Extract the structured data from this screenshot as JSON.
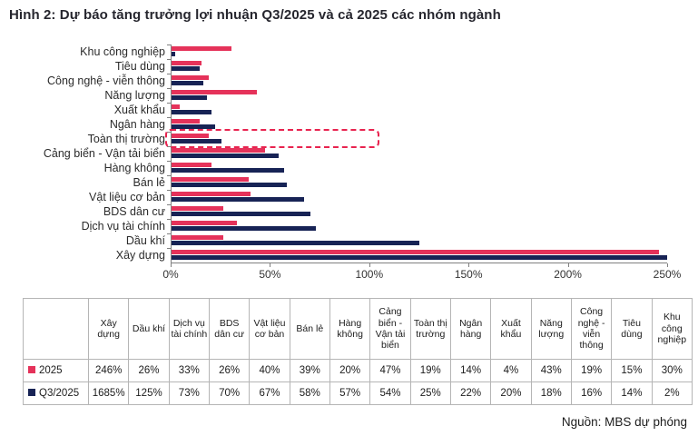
{
  "title": "Hình 2: Dự báo tăng trưởng lợi nhuận Q3/2025 và cả 2025 các nhóm ngành",
  "source": "Nguồn: MBS dự phóng",
  "colors": {
    "series_2025": "#e5325a",
    "series_q3_2025": "#172355",
    "highlight_box": "#e8234f",
    "axis": "#808080"
  },
  "chart_data": {
    "type": "bar",
    "orientation": "horizontal",
    "title": "Dự báo tăng trưởng lợi nhuận Q3/2025 và cả 2025 các nhóm ngành",
    "categories": [
      "Khu công nghiệp",
      "Tiêu dùng",
      "Công nghệ - viễn thông",
      "Năng lượng",
      "Xuất khẩu",
      "Ngân hàng",
      "Toàn thị trường",
      "Cảng biển - Vận tải biển",
      "Hàng không",
      "Bán lẻ",
      "Vật liệu cơ bản",
      "BDS dân cư",
      "Dịch vụ tài chính",
      "Dầu khí",
      "Xây dựng"
    ],
    "series": [
      {
        "name": "2025",
        "color": "#e5325a",
        "values": [
          30,
          15,
          19,
          43,
          4,
          14,
          19,
          47,
          20,
          39,
          40,
          26,
          33,
          26,
          246
        ]
      },
      {
        "name": "Q3/2025",
        "color": "#172355",
        "values": [
          2,
          14,
          16,
          18,
          20,
          22,
          25,
          54,
          57,
          58,
          67,
          70,
          73,
          125,
          1685
        ]
      }
    ],
    "xlim": [
      0,
      250
    ],
    "x_ticks": [
      "0%",
      "50%",
      "100%",
      "150%",
      "200%",
      "250%"
    ],
    "grid": "off",
    "legend_position": "table-below",
    "highlighted_category": "Toàn thị trường",
    "highlight_box_extent_pct": 103
  },
  "table": {
    "corner_label": "",
    "columns": [
      "Xây dựng",
      "Dầu khí",
      "Dịch vụ tài chính",
      "BDS dân cư",
      "Vật liệu cơ bản",
      "Bán lẻ",
      "Hàng không",
      "Cảng biển - Vận tải biển",
      "Toàn thị trường",
      "Ngân hàng",
      "Xuất khẩu",
      "Năng lượng",
      "Công nghệ - viễn thông",
      "Tiêu dùng",
      "Khu công nghiệp"
    ],
    "rows": [
      {
        "label": "2025",
        "swatch_color": "#e5325a",
        "values": [
          "246%",
          "26%",
          "33%",
          "26%",
          "40%",
          "39%",
          "20%",
          "47%",
          "19%",
          "14%",
          "4%",
          "43%",
          "19%",
          "15%",
          "30%"
        ]
      },
      {
        "label": "Q3/2025",
        "swatch_color": "#172355",
        "values": [
          "1685%",
          "125%",
          "73%",
          "70%",
          "67%",
          "58%",
          "57%",
          "54%",
          "25%",
          "22%",
          "20%",
          "18%",
          "16%",
          "14%",
          "2%"
        ]
      }
    ]
  }
}
